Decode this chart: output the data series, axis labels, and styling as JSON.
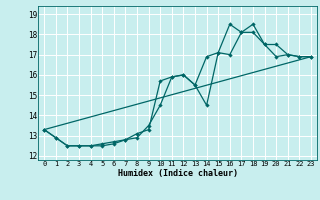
{
  "xlabel": "Humidex (Indice chaleur)",
  "bg_color": "#c8eeee",
  "grid_color": "#ffffff",
  "line_color": "#006666",
  "xlim": [
    -0.5,
    23.5
  ],
  "ylim": [
    11.8,
    19.4
  ],
  "yticks": [
    12,
    13,
    14,
    15,
    16,
    17,
    18,
    19
  ],
  "xticks": [
    0,
    1,
    2,
    3,
    4,
    5,
    6,
    7,
    8,
    9,
    10,
    11,
    12,
    13,
    14,
    15,
    16,
    17,
    18,
    19,
    20,
    21,
    22,
    23
  ],
  "line_trend_x": [
    0,
    23
  ],
  "line_trend_y": [
    13.3,
    16.9
  ],
  "line2_x": [
    0,
    1,
    2,
    3,
    4,
    5,
    6,
    7,
    8,
    9,
    10,
    11,
    12,
    13,
    14,
    15,
    16,
    17,
    18,
    19,
    20,
    21,
    22,
    23
  ],
  "line2_y": [
    13.3,
    12.9,
    12.5,
    12.5,
    12.5,
    12.6,
    12.7,
    12.8,
    13.1,
    13.3,
    15.7,
    15.9,
    16.0,
    15.5,
    14.5,
    17.1,
    17.0,
    18.1,
    18.1,
    17.5,
    17.5,
    17.0,
    16.9,
    16.9
  ],
  "line3_x": [
    0,
    1,
    2,
    3,
    4,
    5,
    6,
    7,
    8,
    9,
    10,
    11,
    12,
    13,
    14,
    15,
    16,
    17,
    18,
    19,
    20,
    21,
    22,
    23
  ],
  "line3_y": [
    13.3,
    12.9,
    12.5,
    12.5,
    12.5,
    12.5,
    12.6,
    12.8,
    12.9,
    13.5,
    14.5,
    15.9,
    16.0,
    15.5,
    16.9,
    17.1,
    18.5,
    18.1,
    18.5,
    17.5,
    16.9,
    17.0,
    16.9,
    16.9
  ]
}
